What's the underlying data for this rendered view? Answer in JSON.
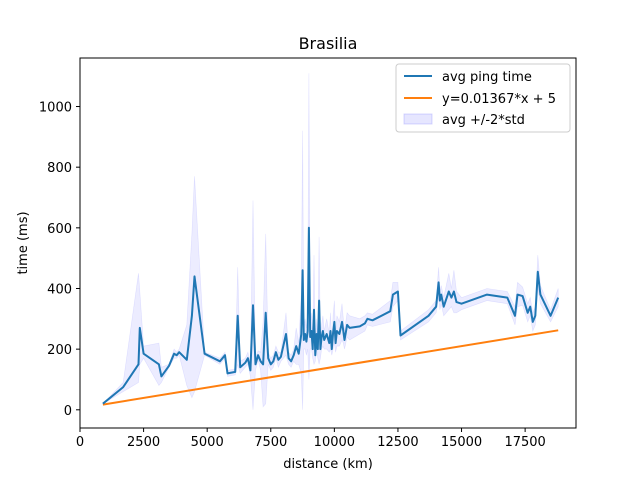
{
  "chart_data": {
    "type": "line",
    "title": "Brasilia",
    "xlabel": "distance (km)",
    "ylabel": "time (ms)",
    "xlim": [
      0,
      19500
    ],
    "ylim": [
      -60,
      1160
    ],
    "xticks": [
      0,
      2500,
      5000,
      7500,
      10000,
      12500,
      15000,
      17500
    ],
    "yticks": [
      0,
      200,
      400,
      600,
      800,
      1000
    ],
    "grid": false,
    "legend_position": "top-right",
    "colors": {
      "avg": "#1f77b4",
      "fit": "#ff7f0e",
      "band": "#8080ff"
    },
    "series": [
      {
        "name": "avg ping time",
        "kind": "line",
        "points": [
          [
            900,
            20
          ],
          [
            1700,
            75
          ],
          [
            2300,
            150
          ],
          [
            2350,
            270
          ],
          [
            2500,
            185
          ],
          [
            3100,
            150
          ],
          [
            3200,
            110
          ],
          [
            3500,
            145
          ],
          [
            3700,
            185
          ],
          [
            3800,
            180
          ],
          [
            3900,
            190
          ],
          [
            4200,
            165
          ],
          [
            4400,
            310
          ],
          [
            4500,
            440
          ],
          [
            4900,
            185
          ],
          [
            5500,
            160
          ],
          [
            5700,
            180
          ],
          [
            5800,
            120
          ],
          [
            6100,
            125
          ],
          [
            6200,
            310
          ],
          [
            6300,
            140
          ],
          [
            6500,
            155
          ],
          [
            6600,
            170
          ],
          [
            6700,
            130
          ],
          [
            6800,
            345
          ],
          [
            6900,
            150
          ],
          [
            7000,
            180
          ],
          [
            7100,
            160
          ],
          [
            7200,
            150
          ],
          [
            7300,
            320
          ],
          [
            7400,
            170
          ],
          [
            7500,
            150
          ],
          [
            7600,
            160
          ],
          [
            7700,
            190
          ],
          [
            7800,
            165
          ],
          [
            7900,
            175
          ],
          [
            8100,
            250
          ],
          [
            8200,
            170
          ],
          [
            8300,
            160
          ],
          [
            8400,
            180
          ],
          [
            8500,
            210
          ],
          [
            8600,
            185
          ],
          [
            8700,
            250
          ],
          [
            8750,
            460
          ],
          [
            8800,
            230
          ],
          [
            8850,
            250
          ],
          [
            8900,
            225
          ],
          [
            8950,
            260
          ],
          [
            9000,
            600
          ],
          [
            9050,
            240
          ],
          [
            9100,
            260
          ],
          [
            9150,
            200
          ],
          [
            9200,
            330
          ],
          [
            9250,
            180
          ],
          [
            9300,
            250
          ],
          [
            9350,
            200
          ],
          [
            9400,
            360
          ],
          [
            9450,
            200
          ],
          [
            9500,
            240
          ],
          [
            9550,
            260
          ],
          [
            9600,
            230
          ],
          [
            9700,
            250
          ],
          [
            9800,
            220
          ],
          [
            9850,
            260
          ],
          [
            9900,
            200
          ],
          [
            9950,
            255
          ],
          [
            10000,
            290
          ],
          [
            10050,
            220
          ],
          [
            10100,
            260
          ],
          [
            10200,
            250
          ],
          [
            10300,
            290
          ],
          [
            10350,
            260
          ],
          [
            10400,
            230
          ],
          [
            10500,
            280
          ],
          [
            10600,
            270
          ],
          [
            11000,
            275
          ],
          [
            11200,
            285
          ],
          [
            11300,
            300
          ],
          [
            11500,
            295
          ],
          [
            12200,
            325
          ],
          [
            12300,
            380
          ],
          [
            12500,
            390
          ],
          [
            12600,
            245
          ],
          [
            13700,
            310
          ],
          [
            14000,
            340
          ],
          [
            14100,
            420
          ],
          [
            14150,
            360
          ],
          [
            14200,
            380
          ],
          [
            14300,
            340
          ],
          [
            14500,
            390
          ],
          [
            14600,
            370
          ],
          [
            14700,
            390
          ],
          [
            14800,
            355
          ],
          [
            15000,
            350
          ],
          [
            16000,
            380
          ],
          [
            16800,
            370
          ],
          [
            17100,
            310
          ],
          [
            17200,
            380
          ],
          [
            17400,
            375
          ],
          [
            17600,
            320
          ],
          [
            17700,
            340
          ],
          [
            17800,
            290
          ],
          [
            17900,
            310
          ],
          [
            18000,
            455
          ],
          [
            18100,
            380
          ],
          [
            18500,
            310
          ],
          [
            18800,
            370
          ]
        ]
      },
      {
        "name": "y=0.01367*x + 5",
        "kind": "line",
        "points": [
          [
            900,
            17.3
          ],
          [
            18800,
            262
          ]
        ]
      },
      {
        "name": "avg +/-2*std",
        "kind": "band",
        "points": [
          [
            900,
            20,
            20
          ],
          [
            1700,
            60,
            90
          ],
          [
            2300,
            90,
            450
          ],
          [
            2350,
            150,
            390
          ],
          [
            2500,
            170,
            210
          ],
          [
            3100,
            80,
            220
          ],
          [
            3200,
            90,
            140
          ],
          [
            3500,
            140,
            150
          ],
          [
            3700,
            170,
            200
          ],
          [
            3800,
            170,
            190
          ],
          [
            3900,
            180,
            200
          ],
          [
            4200,
            80,
            280
          ],
          [
            4400,
            40,
            580
          ],
          [
            4500,
            60,
            770
          ],
          [
            4900,
            180,
            190
          ],
          [
            5500,
            150,
            170
          ],
          [
            5700,
            170,
            190
          ],
          [
            5800,
            110,
            130
          ],
          [
            6100,
            115,
            135
          ],
          [
            6200,
            150,
            470
          ],
          [
            6300,
            120,
            160
          ],
          [
            6500,
            140,
            170
          ],
          [
            6600,
            150,
            190
          ],
          [
            6700,
            110,
            150
          ],
          [
            6800,
            0,
            690
          ],
          [
            6900,
            130,
            170
          ],
          [
            7000,
            165,
            195
          ],
          [
            7100,
            130,
            190
          ],
          [
            7200,
            10,
            290
          ],
          [
            7300,
            20,
            580
          ],
          [
            7400,
            150,
            190
          ],
          [
            7500,
            130,
            170
          ],
          [
            7600,
            140,
            180
          ],
          [
            7700,
            170,
            210
          ],
          [
            7800,
            140,
            190
          ],
          [
            7900,
            160,
            190
          ],
          [
            8100,
            180,
            320
          ],
          [
            8200,
            150,
            190
          ],
          [
            8300,
            140,
            180
          ],
          [
            8400,
            160,
            200
          ],
          [
            8500,
            150,
            270
          ],
          [
            8600,
            150,
            220
          ],
          [
            8700,
            120,
            380
          ],
          [
            8750,
            0,
            920
          ],
          [
            8800,
            200,
            260
          ],
          [
            8850,
            200,
            300
          ],
          [
            8900,
            180,
            270
          ],
          [
            8950,
            200,
            320
          ],
          [
            9000,
            100,
            1110
          ],
          [
            9050,
            200,
            280
          ],
          [
            9100,
            200,
            320
          ],
          [
            9150,
            170,
            230
          ],
          [
            9200,
            150,
            510
          ],
          [
            9250,
            160,
            200
          ],
          [
            9300,
            200,
            300
          ],
          [
            9350,
            170,
            230
          ],
          [
            9400,
            150,
            570
          ],
          [
            9450,
            170,
            230
          ],
          [
            9500,
            200,
            280
          ],
          [
            9550,
            210,
            310
          ],
          [
            9600,
            200,
            260
          ],
          [
            9700,
            200,
            300
          ],
          [
            9800,
            190,
            250
          ],
          [
            9850,
            200,
            320
          ],
          [
            9900,
            180,
            220
          ],
          [
            9950,
            200,
            310
          ],
          [
            10000,
            220,
            360
          ],
          [
            10050,
            190,
            250
          ],
          [
            10100,
            210,
            310
          ],
          [
            10200,
            210,
            290
          ],
          [
            10300,
            230,
            350
          ],
          [
            10350,
            220,
            300
          ],
          [
            10400,
            200,
            260
          ],
          [
            10500,
            240,
            320
          ],
          [
            10600,
            230,
            310
          ],
          [
            11000,
            250,
            300
          ],
          [
            11200,
            260,
            310
          ],
          [
            11300,
            280,
            320
          ],
          [
            11500,
            275,
            315
          ],
          [
            12200,
            290,
            360
          ],
          [
            12300,
            340,
            420
          ],
          [
            12500,
            360,
            420
          ],
          [
            12600,
            230,
            260
          ],
          [
            13700,
            290,
            330
          ],
          [
            14000,
            320,
            360
          ],
          [
            14100,
            370,
            470
          ],
          [
            14150,
            330,
            390
          ],
          [
            14200,
            350,
            410
          ],
          [
            14300,
            310,
            370
          ],
          [
            14500,
            330,
            450
          ],
          [
            14600,
            340,
            400
          ],
          [
            14700,
            320,
            460
          ],
          [
            14800,
            320,
            390
          ],
          [
            15000,
            330,
            370
          ],
          [
            16000,
            360,
            400
          ],
          [
            16800,
            350,
            390
          ],
          [
            17100,
            280,
            340
          ],
          [
            17200,
            340,
            420
          ],
          [
            17400,
            345,
            405
          ],
          [
            17600,
            290,
            350
          ],
          [
            17700,
            310,
            370
          ],
          [
            17800,
            260,
            320
          ],
          [
            17900,
            280,
            340
          ],
          [
            18000,
            400,
            510
          ],
          [
            18100,
            350,
            410
          ],
          [
            18500,
            290,
            330
          ],
          [
            18800,
            340,
            400
          ]
        ]
      }
    ]
  }
}
